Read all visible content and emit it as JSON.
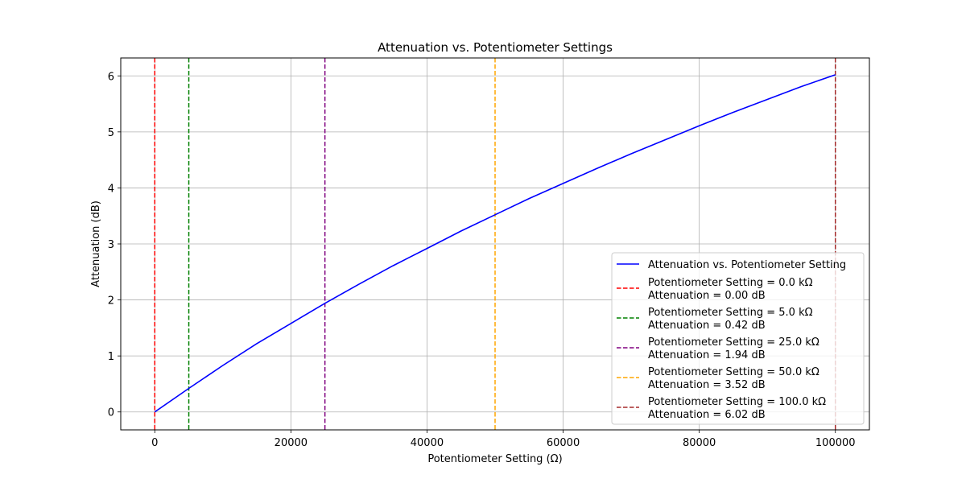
{
  "chart_data": {
    "type": "line",
    "title": "Attenuation vs. Potentiometer Settings",
    "xlabel": "Potentiometer Setting (Ω)",
    "ylabel": "Attenuation (dB)",
    "xlim": [
      -5000,
      105000
    ],
    "ylim": [
      -0.32,
      6.32
    ],
    "xticks": [
      0,
      20000,
      40000,
      60000,
      80000,
      100000
    ],
    "xtick_labels": [
      "0",
      "20000",
      "40000",
      "60000",
      "80000",
      "100000"
    ],
    "yticks": [
      0,
      1,
      2,
      3,
      4,
      5,
      6
    ],
    "ytick_labels": [
      "0",
      "1",
      "2",
      "3",
      "4",
      "5",
      "6"
    ],
    "grid": true,
    "legend_position": "bottom-right",
    "series": [
      {
        "name": "Attenuation vs. Potentiometer Setting",
        "style": "solid",
        "color": "#0000ff",
        "x": [
          0,
          5000,
          10000,
          15000,
          20000,
          25000,
          30000,
          35000,
          40000,
          45000,
          50000,
          55000,
          60000,
          65000,
          70000,
          75000,
          80000,
          85000,
          90000,
          95000,
          100000
        ],
        "y": [
          0.0,
          0.42,
          0.83,
          1.22,
          1.58,
          1.94,
          2.28,
          2.61,
          2.92,
          3.23,
          3.52,
          3.81,
          4.08,
          4.35,
          4.61,
          4.86,
          5.11,
          5.35,
          5.58,
          5.81,
          6.02
        ]
      }
    ],
    "markers": [
      {
        "x": 0,
        "color": "#ff0000",
        "label_line1": "Potentiometer Setting = 0.0 kΩ",
        "label_line2": "Attenuation = 0.00 dB"
      },
      {
        "x": 5000,
        "color": "#008000",
        "label_line1": "Potentiometer Setting = 5.0 kΩ",
        "label_line2": "Attenuation = 0.42 dB"
      },
      {
        "x": 25000,
        "color": "#800080",
        "label_line1": "Potentiometer Setting = 25.0 kΩ",
        "label_line2": "Attenuation = 1.94 dB"
      },
      {
        "x": 50000,
        "color": "#ffa500",
        "label_line1": "Potentiometer Setting = 50.0 kΩ",
        "label_line2": "Attenuation = 3.52 dB"
      },
      {
        "x": 100000,
        "color": "#a52a2a",
        "label_line1": "Potentiometer Setting = 100.0 kΩ",
        "label_line2": "Attenuation = 6.02 dB"
      }
    ]
  }
}
